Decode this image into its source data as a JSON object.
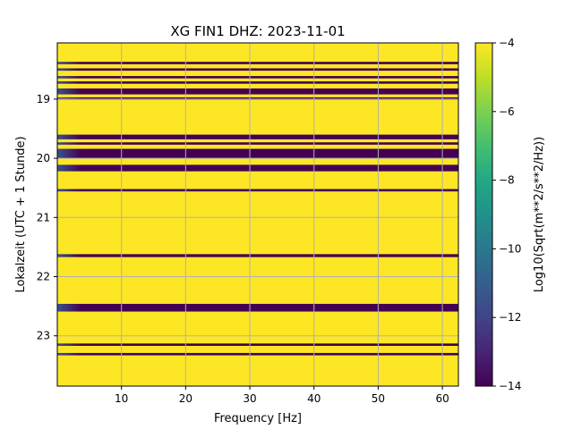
{
  "chart_data": {
    "type": "heatmap",
    "title": "XG FIN1  DHZ: 2023-11-01",
    "xlabel": "Frequency [Hz]",
    "ylabel": "Lokalzeit (UTC + 1 Stunde)",
    "xlim": [
      0,
      62.5
    ],
    "ylim": [
      23.85,
      18.05
    ],
    "xticks": [
      10,
      20,
      30,
      40,
      50,
      60
    ],
    "yticks": [
      19,
      20,
      21,
      22,
      23
    ],
    "grid": true,
    "colormap": "viridis",
    "colorbar": {
      "label": "Log10(Sqrt(m**2/s**2/Hz))",
      "range": [
        -14,
        -4
      ],
      "ticks": [
        -4,
        -6,
        -8,
        -10,
        -12,
        -14
      ],
      "tick_labels": [
        "−4",
        "−6",
        "−8",
        "−10",
        "−12",
        "−14"
      ]
    },
    "background_value": -4,
    "low_bands": [
      {
        "y0": 18.37,
        "y1": 18.41,
        "value": -14
      },
      {
        "y0": 18.48,
        "y1": 18.52,
        "value": -14
      },
      {
        "y0": 18.61,
        "y1": 18.65,
        "value": -14
      },
      {
        "y0": 18.7,
        "y1": 18.74,
        "value": -14
      },
      {
        "y0": 18.82,
        "y1": 18.92,
        "value": -14
      },
      {
        "y0": 18.97,
        "y1": 19.01,
        "value": -14
      },
      {
        "y0": 19.6,
        "y1": 19.68,
        "value": -14
      },
      {
        "y0": 19.73,
        "y1": 19.77,
        "value": -14
      },
      {
        "y0": 19.84,
        "y1": 20.0,
        "value": -14
      },
      {
        "y0": 20.11,
        "y1": 20.22,
        "value": -14
      },
      {
        "y0": 20.52,
        "y1": 20.56,
        "value": -14
      },
      {
        "y0": 21.62,
        "y1": 21.67,
        "value": -14
      },
      {
        "y0": 22.46,
        "y1": 22.59,
        "value": -14
      },
      {
        "y0": 23.13,
        "y1": 23.17,
        "value": -14
      },
      {
        "y0": 23.29,
        "y1": 23.33,
        "value": -14
      }
    ]
  }
}
